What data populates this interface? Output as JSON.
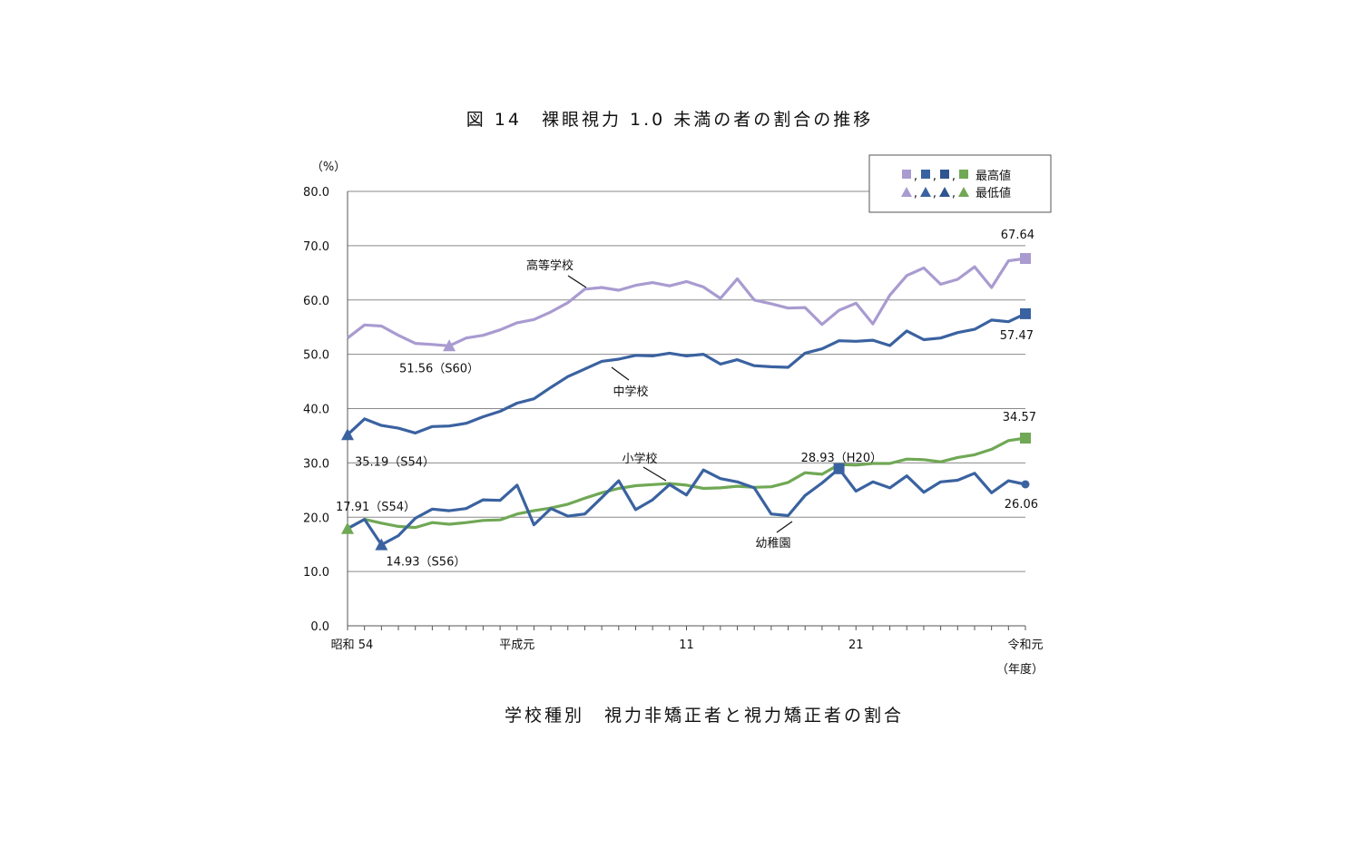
{
  "chart_data": {
    "type": "line",
    "title": "図 14　裸眼視力 1.0 未満の者の割合の推移",
    "subtitle": "学校種別　視力非矯正者と視力矯正者の割合",
    "y_unit": "（%）",
    "x_unit": "（年度）",
    "ylim": [
      0,
      80
    ],
    "y_ticks": [
      "80.0",
      "70.0",
      "60.0",
      "50.0",
      "40.0",
      "30.0",
      "20.0",
      "10.0",
      "0.0"
    ],
    "x_tick_labels": [
      {
        "label": "昭和 54",
        "index": 0
      },
      {
        "label": "平成元",
        "index": 10
      },
      {
        "label": "11",
        "index": 20
      },
      {
        "label": "21",
        "index": 30
      },
      {
        "label": "令和元",
        "index": 40
      }
    ],
    "grid": true,
    "legend": {
      "placement": "top-right",
      "max_label": "最高値",
      "min_label": "最低値",
      "max_separator": "■,■,■,",
      "min_separator": "▲,▲,▲,"
    },
    "series": [
      {
        "name": "高等学校",
        "color": "#a99bd0",
        "values": [
          53.0,
          55.4,
          55.2,
          53.5,
          52.0,
          51.8,
          51.56,
          53.0,
          53.5,
          54.5,
          55.8,
          56.4,
          57.8,
          59.5,
          62.0,
          62.3,
          61.8,
          62.7,
          63.2,
          62.6,
          63.4,
          62.4,
          60.3,
          63.9,
          60.0,
          59.3,
          58.5,
          58.6,
          55.5,
          58.1,
          59.4,
          55.6,
          60.9,
          64.5,
          65.9,
          62.9,
          63.8,
          66.1,
          62.3,
          67.2,
          67.64
        ],
        "max": {
          "index": 40,
          "label": "67.64"
        },
        "min": {
          "index": 6,
          "label": "51.56（S60）"
        }
      },
      {
        "name": "中学校",
        "color": "#3a62a0",
        "values": [
          35.19,
          38.1,
          36.9,
          36.4,
          35.5,
          36.7,
          36.8,
          37.3,
          38.5,
          39.5,
          41.0,
          41.8,
          43.9,
          45.9,
          47.3,
          48.7,
          49.1,
          49.8,
          49.7,
          50.2,
          49.7,
          50.0,
          48.2,
          49.0,
          47.9,
          47.7,
          47.6,
          50.2,
          51.0,
          52.5,
          52.4,
          52.6,
          51.6,
          54.3,
          52.7,
          53.0,
          54.0,
          54.6,
          56.3,
          56.0,
          57.47
        ],
        "max": {
          "index": 40,
          "label": "57.47"
        },
        "min": {
          "index": 0,
          "label": "35.19（S54）"
        }
      },
      {
        "name": "小学校",
        "color": "#3a62a0",
        "values": [
          17.91,
          19.6,
          14.93,
          16.6,
          19.8,
          21.5,
          21.2,
          21.6,
          23.2,
          23.1,
          25.9,
          18.6,
          21.6,
          20.2,
          20.6,
          23.6,
          26.7,
          21.4,
          23.2,
          26.0,
          24.1,
          28.7,
          27.1,
          26.5,
          25.4,
          20.6,
          20.3,
          24.0,
          26.3,
          28.93,
          24.8,
          26.5,
          25.4,
          27.6,
          24.6,
          26.5,
          26.8,
          28.1,
          24.5,
          26.7,
          26.06
        ],
        "min": {
          "index": 2,
          "label": "14.93（S56）"
        },
        "max": {
          "index": 29,
          "label": "28.93（H20）"
        },
        "last": {
          "index": 40,
          "label": "26.06"
        }
      },
      {
        "name": "幼稚園",
        "color": "#70a855",
        "values": [
          17.91,
          19.6,
          18.9,
          18.3,
          18.1,
          19.0,
          18.7,
          19.0,
          19.4,
          19.5,
          20.6,
          21.2,
          21.7,
          22.4,
          23.5,
          24.5,
          25.3,
          25.8,
          26.0,
          26.2,
          25.9,
          25.3,
          25.4,
          25.7,
          25.5,
          25.6,
          26.4,
          28.2,
          27.9,
          29.7,
          29.6,
          29.9,
          29.9,
          30.7,
          30.6,
          30.2,
          31.0,
          31.5,
          32.5,
          34.1,
          34.57
        ],
        "min": {
          "index": 0,
          "label": "17.91（S54）"
        },
        "max": {
          "index": 40,
          "label": "34.57"
        }
      }
    ],
    "line_labels": [
      {
        "text": "高等学校",
        "series": 0
      },
      {
        "text": "中学校",
        "series": 1
      },
      {
        "text": "小学校",
        "series": 2
      },
      {
        "text": "幼稚園",
        "series": 3
      }
    ]
  }
}
